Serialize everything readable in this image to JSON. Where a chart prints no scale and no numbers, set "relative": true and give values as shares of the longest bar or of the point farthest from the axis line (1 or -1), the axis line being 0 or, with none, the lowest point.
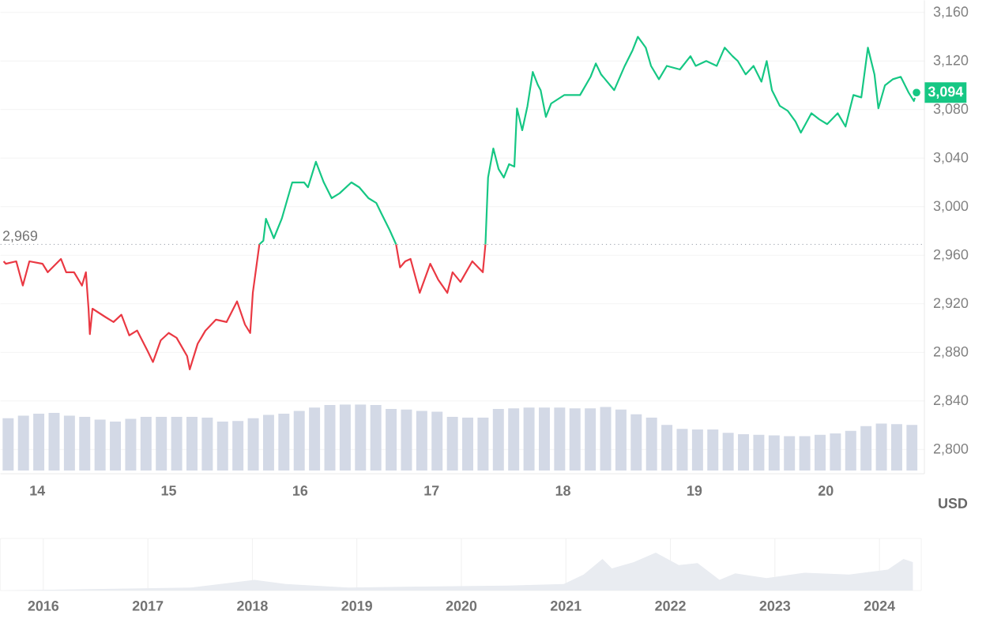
{
  "chart_data": [
    {
      "type": "line",
      "xlim": [
        13.72,
        20.75
      ],
      "xticks": [
        14,
        15,
        16,
        17,
        18,
        19,
        20
      ],
      "ylim": [
        2780,
        3170
      ],
      "yticks": [
        {
          "value": 2800,
          "label": "2,800"
        },
        {
          "value": 2840,
          "label": "2,840"
        },
        {
          "value": 2880,
          "label": "2,880"
        },
        {
          "value": 2920,
          "label": "2,920"
        },
        {
          "value": 2960,
          "label": "2,960"
        },
        {
          "value": 3000,
          "label": "3,000"
        },
        {
          "value": 3040,
          "label": "3,040"
        },
        {
          "value": 3080,
          "label": "3,080"
        },
        {
          "value": 3120,
          "label": "3,120"
        },
        {
          "value": 3160,
          "label": "3,160"
        }
      ],
      "ylabel": "USD",
      "grid": "y",
      "series": [
        {
          "color": "#ea3943",
          "x": [
            13.744,
            13.76,
            13.84,
            13.89,
            13.94,
            14.04,
            14.08,
            14.18,
            14.22,
            14.28,
            14.34,
            14.37,
            14.39,
            14.4,
            14.42,
            14.52,
            14.58,
            14.64,
            14.7,
            14.76,
            14.84,
            14.88,
            14.94,
            15.0,
            15.06,
            15.14,
            15.16,
            15.22,
            15.28,
            15.36,
            15.44,
            15.52,
            15.58,
            15.62,
            15.64,
            15.69,
            null,
            16.73,
            16.76,
            16.8,
            16.84,
            16.91,
            16.99,
            17.05,
            17.12,
            17.16,
            17.22,
            17.31,
            17.39,
            17.41
          ],
          "values": [
            2955,
            2953,
            2955,
            2935,
            2955,
            2953,
            2946,
            2957,
            2946,
            2946,
            2935,
            2946,
            2916,
            2895,
            2916,
            2909,
            2905,
            2911,
            2894,
            2898,
            2881,
            2872,
            2890,
            2896,
            2892,
            2877,
            2866,
            2887,
            2898,
            2907,
            2905,
            2922,
            2903,
            2896,
            2929,
            2969,
            null,
            2969,
            2950,
            2955,
            2957,
            2929,
            2953,
            2940,
            2929,
            2946,
            2938,
            2955,
            2946,
            2969
          ]
        },
        {
          "color": "#16c784",
          "x": [
            15.69,
            15.72,
            15.74,
            15.8,
            15.86,
            15.94,
            16.03,
            16.06,
            16.12,
            16.18,
            16.24,
            16.3,
            16.39,
            16.45,
            16.52,
            16.58,
            16.62,
            16.68,
            16.73,
            null,
            17.41,
            17.43,
            17.47,
            17.51,
            17.55,
            17.59,
            17.63,
            17.65,
            17.69,
            17.73,
            17.77,
            17.81,
            17.83,
            17.87,
            17.91,
            18.01,
            18.13,
            18.21,
            18.25,
            18.29,
            18.39,
            18.47,
            18.53,
            18.57,
            18.63,
            18.67,
            18.73,
            18.79,
            18.89,
            18.97,
            19.01,
            19.09,
            19.17,
            19.23,
            19.29,
            19.33,
            19.39,
            19.45,
            19.51,
            19.55,
            19.59,
            19.65,
            19.71,
            19.77,
            19.81,
            19.89,
            19.95,
            20.01,
            20.09,
            20.15,
            20.21,
            20.27,
            20.32,
            20.37,
            20.4,
            20.45,
            20.51,
            20.57,
            20.63,
            20.67,
            20.69
          ],
          "values": [
            2969,
            2972,
            2990,
            2974,
            2990,
            3020,
            3020,
            3016,
            3037,
            3020,
            3007,
            3011,
            3020,
            3016,
            3007,
            3003,
            2994,
            2981,
            2969,
            null,
            2969,
            3024,
            3048,
            3031,
            3024,
            3035,
            3033,
            3081,
            3063,
            3083,
            3111,
            3100,
            3096,
            3074,
            3085,
            3092,
            3092,
            3107,
            3118,
            3109,
            3096,
            3116,
            3129,
            3140,
            3131,
            3116,
            3105,
            3116,
            3113,
            3124,
            3116,
            3120,
            3116,
            3131,
            3124,
            3120,
            3109,
            3116,
            3103,
            3120,
            3096,
            3083,
            3079,
            3070,
            3061,
            3077,
            3072,
            3068,
            3077,
            3066,
            3092,
            3090,
            3131,
            3109,
            3081,
            3100,
            3105,
            3107,
            3094,
            3087,
            3094
          ]
        }
      ],
      "ref_lines": [
        {
          "axis": "y",
          "value": 2969,
          "label": "2,969",
          "line_style": "dotted",
          "color": "#9aa0ab"
        }
      ],
      "annotations": [
        {
          "text": "3,094",
          "x": 20.69,
          "y": 3094
        }
      ]
    },
    {
      "type": "bar",
      "relative": true,
      "color": "#d3d9e6",
      "categories": [
        null,
        null,
        null,
        null,
        null,
        null,
        null,
        null,
        null,
        null,
        null,
        null,
        null,
        null,
        null,
        null,
        null,
        null,
        null,
        null,
        null,
        null,
        null,
        null,
        null,
        null,
        null,
        null,
        null,
        null,
        null,
        null,
        null,
        null,
        null,
        null,
        null,
        null,
        null,
        null,
        null,
        null,
        null,
        null,
        null,
        null,
        null,
        null,
        null,
        null,
        null,
        null,
        null,
        null,
        null,
        null,
        null,
        null,
        null,
        null
      ],
      "values": [
        0.79,
        0.83,
        0.86,
        0.87,
        0.83,
        0.81,
        0.77,
        0.74,
        0.78,
        0.81,
        0.81,
        0.81,
        0.81,
        0.8,
        0.74,
        0.75,
        0.79,
        0.84,
        0.86,
        0.9,
        0.95,
        0.99,
        1,
        1,
        0.99,
        0.93,
        0.92,
        0.9,
        0.89,
        0.81,
        0.8,
        0.8,
        0.93,
        0.94,
        0.95,
        0.95,
        0.95,
        0.94,
        0.94,
        0.96,
        0.92,
        0.85,
        0.8,
        0.69,
        0.63,
        0.62,
        0.62,
        0.57,
        0.55,
        0.54,
        0.53,
        0.52,
        0.52,
        0.54,
        0.56,
        0.6,
        0.67,
        0.71,
        0.7,
        0.69
      ]
    },
    {
      "type": "area",
      "relative": true,
      "color": "#e9ecf1",
      "grid": "x",
      "tick_labels": "x",
      "xlim": [
        2015.59,
        2024.4
      ],
      "xticks": [
        2016,
        2017,
        2018,
        2019,
        2020,
        2021,
        2022,
        2023,
        2024
      ],
      "x": [
        2015.59,
        2017.41,
        2018.02,
        2018.32,
        2018.92,
        2020.44,
        2020.98,
        2021.17,
        2021.35,
        2021.44,
        2021.65,
        2021.86,
        2022.08,
        2022.26,
        2022.47,
        2022.62,
        2022.92,
        2023.29,
        2023.71,
        2024.08,
        2024.23,
        2024.32
      ],
      "values": [
        0,
        0.08,
        0.28,
        0.17,
        0.08,
        0.13,
        0.17,
        0.42,
        0.83,
        0.58,
        0.75,
        1,
        0.67,
        0.72,
        0.28,
        0.45,
        0.33,
        0.47,
        0.42,
        0.55,
        0.83,
        0.75
      ]
    }
  ]
}
